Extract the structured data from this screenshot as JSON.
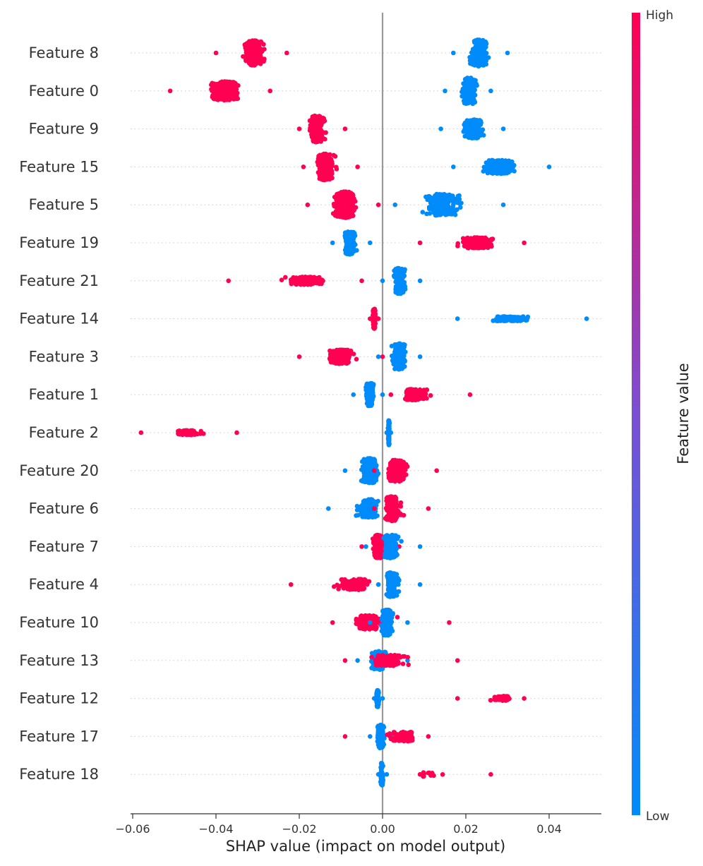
{
  "chart_data": {
    "type": "scatter",
    "subtype": "shap-beeswarm",
    "title": "",
    "xlabel": "SHAP value (impact on model output)",
    "ylabel": "",
    "xlim": [
      -0.064,
      0.054
    ],
    "xticks": [
      -0.06,
      -0.04,
      -0.02,
      0.0,
      0.02,
      0.04
    ],
    "xtick_labels": [
      "−0.06",
      "−0.04",
      "−0.02",
      "0.00",
      "0.02",
      "0.04"
    ],
    "grid": false,
    "colorbar": {
      "title": "Feature value",
      "high_label": "High",
      "low_label": "Low",
      "high_color": "#ff0052",
      "low_color": "#008bfb"
    },
    "features": [
      {
        "name": "Feature 8",
        "clusters": [
          {
            "level": "high",
            "center": -0.031,
            "min": -0.04,
            "max": -0.023,
            "n": 220,
            "width": 0.8
          },
          {
            "level": "low",
            "center": 0.023,
            "min": 0.017,
            "max": 0.03,
            "n": 200,
            "width": 0.85
          }
        ]
      },
      {
        "name": "Feature 0",
        "clusters": [
          {
            "level": "high",
            "center": -0.038,
            "min": -0.051,
            "max": -0.027,
            "n": 220,
            "width": 0.6
          },
          {
            "level": "low",
            "center": 0.021,
            "min": 0.015,
            "max": 0.026,
            "n": 180,
            "width": 0.85
          }
        ]
      },
      {
        "name": "Feature 9",
        "clusters": [
          {
            "level": "high",
            "center": -0.016,
            "min": -0.02,
            "max": -0.009,
            "n": 200,
            "width": 0.85
          },
          {
            "level": "low",
            "center": 0.022,
            "min": 0.014,
            "max": 0.029,
            "n": 200,
            "width": 0.6
          }
        ]
      },
      {
        "name": "Feature 15",
        "clusters": [
          {
            "level": "high",
            "center": -0.014,
            "min": -0.019,
            "max": -0.006,
            "n": 220,
            "width": 0.85
          },
          {
            "level": "low",
            "center": 0.028,
            "min": 0.017,
            "max": 0.04,
            "n": 200,
            "width": 0.45
          }
        ]
      },
      {
        "name": "Feature 5",
        "clusters": [
          {
            "level": "high",
            "center": -0.009,
            "min": -0.018,
            "max": -0.001,
            "n": 260,
            "width": 0.85
          },
          {
            "level": "low",
            "center": 0.014,
            "min": 0.003,
            "max": 0.029,
            "n": 220,
            "width": 0.7
          }
        ]
      },
      {
        "name": "Feature 19",
        "clusters": [
          {
            "level": "low",
            "center": -0.008,
            "min": -0.012,
            "max": -0.003,
            "n": 180,
            "width": 0.75
          },
          {
            "level": "high",
            "center": 0.023,
            "min": 0.009,
            "max": 0.034,
            "n": 180,
            "width": 0.35
          }
        ]
      },
      {
        "name": "Feature 21",
        "clusters": [
          {
            "level": "high",
            "center": -0.018,
            "min": -0.037,
            "max": -0.005,
            "n": 160,
            "width": 0.25
          },
          {
            "level": "low",
            "center": 0.004,
            "min": 0.0,
            "max": 0.009,
            "n": 200,
            "width": 0.85
          }
        ]
      },
      {
        "name": "Feature 14",
        "clusters": [
          {
            "level": "high",
            "center": -0.002,
            "min": -0.003,
            "max": -0.001,
            "n": 120,
            "width": 0.65
          },
          {
            "level": "low",
            "center": 0.03,
            "min": 0.018,
            "max": 0.049,
            "n": 140,
            "width": 0.15
          }
        ]
      },
      {
        "name": "Feature 3",
        "clusters": [
          {
            "level": "high",
            "center": -0.01,
            "min": -0.02,
            "max": 0.0,
            "n": 200,
            "width": 0.45
          },
          {
            "level": "low",
            "center": 0.004,
            "min": -0.001,
            "max": 0.009,
            "n": 200,
            "width": 0.85
          }
        ]
      },
      {
        "name": "Feature 1",
        "clusters": [
          {
            "level": "low",
            "center": -0.003,
            "min": -0.007,
            "max": 0.0,
            "n": 140,
            "width": 0.75
          },
          {
            "level": "high",
            "center": 0.007,
            "min": 0.002,
            "max": 0.021,
            "n": 160,
            "width": 0.35
          }
        ]
      },
      {
        "name": "Feature 2",
        "clusters": [
          {
            "level": "high",
            "center": -0.047,
            "min": -0.058,
            "max": -0.035,
            "n": 70,
            "width": 0.15
          },
          {
            "level": "low",
            "center": 0.0015,
            "min": 0.001,
            "max": 0.002,
            "n": 80,
            "width": 0.8
          }
        ]
      },
      {
        "name": "Feature 20",
        "clusters": [
          {
            "level": "low",
            "center": -0.003,
            "min": -0.009,
            "max": 0.003,
            "n": 220,
            "width": 0.8
          },
          {
            "level": "high",
            "center": 0.003,
            "min": -0.002,
            "max": 0.013,
            "n": 220,
            "width": 0.7
          }
        ]
      },
      {
        "name": "Feature 6",
        "clusters": [
          {
            "level": "low",
            "center": -0.003,
            "min": -0.013,
            "max": 0.003,
            "n": 200,
            "width": 0.6
          },
          {
            "level": "high",
            "center": 0.002,
            "min": -0.002,
            "max": 0.011,
            "n": 200,
            "width": 0.8
          }
        ]
      },
      {
        "name": "Feature 7",
        "clusters": [
          {
            "level": "high",
            "center": -0.001,
            "min": -0.005,
            "max": 0.004,
            "n": 200,
            "width": 0.75
          },
          {
            "level": "low",
            "center": 0.002,
            "min": -0.004,
            "max": 0.009,
            "n": 200,
            "width": 0.75
          }
        ]
      },
      {
        "name": "Feature 4",
        "clusters": [
          {
            "level": "high",
            "center": -0.006,
            "min": -0.022,
            "max": 0.002,
            "n": 160,
            "width": 0.35
          },
          {
            "level": "low",
            "center": 0.002,
            "min": -0.001,
            "max": 0.009,
            "n": 200,
            "width": 0.8
          }
        ]
      },
      {
        "name": "Feature 10",
        "clusters": [
          {
            "level": "high",
            "center": -0.004,
            "min": -0.012,
            "max": 0.016,
            "n": 160,
            "width": 0.45
          },
          {
            "level": "low",
            "center": 0.001,
            "min": -0.003,
            "max": 0.006,
            "n": 200,
            "width": 0.85
          }
        ]
      },
      {
        "name": "Feature 13",
        "clusters": [
          {
            "level": "low",
            "center": -0.001,
            "min": -0.006,
            "max": 0.006,
            "n": 200,
            "width": 0.6
          },
          {
            "level": "high",
            "center": 0.001,
            "min": -0.009,
            "max": 0.018,
            "n": 150,
            "width": 0.35
          }
        ]
      },
      {
        "name": "Feature 12",
        "clusters": [
          {
            "level": "low",
            "center": -0.0012,
            "min": -0.002,
            "max": 0.0,
            "n": 80,
            "width": 0.55
          },
          {
            "level": "high",
            "center": 0.029,
            "min": 0.018,
            "max": 0.034,
            "n": 60,
            "width": 0.15
          }
        ]
      },
      {
        "name": "Feature 17",
        "clusters": [
          {
            "level": "low",
            "center": -0.0005,
            "min": -0.003,
            "max": 0.002,
            "n": 160,
            "width": 0.75
          },
          {
            "level": "high",
            "center": 0.006,
            "min": -0.009,
            "max": 0.011,
            "n": 140,
            "width": 0.3
          }
        ]
      },
      {
        "name": "Feature 18",
        "clusters": [
          {
            "level": "low",
            "center": -0.0002,
            "min": -0.001,
            "max": 0.001,
            "n": 80,
            "width": 0.75
          },
          {
            "level": "high",
            "center": 0.01,
            "min": 0.009,
            "max": 0.026,
            "n": 12,
            "width": 0.15
          }
        ]
      }
    ]
  }
}
